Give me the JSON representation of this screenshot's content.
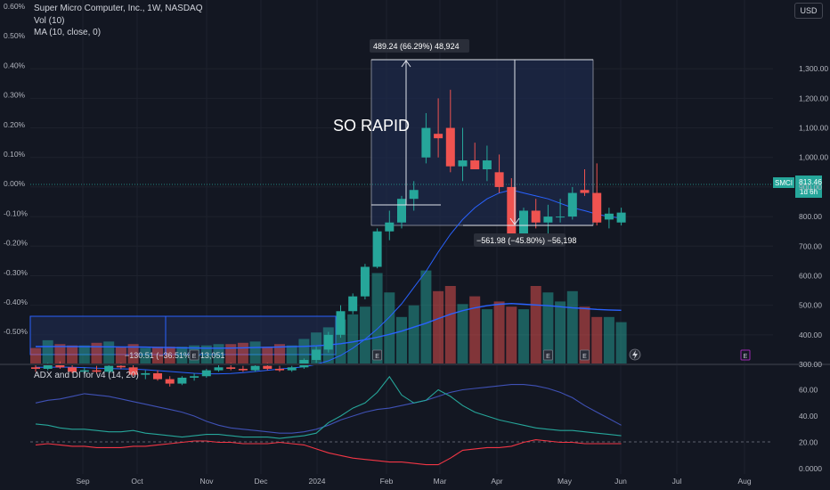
{
  "header": {
    "symbol_line": "Super Micro Computer, Inc., 1W, NASDAQ",
    "vol_line": "Vol (10)",
    "ma_line": "MA (10, close, 0)",
    "currency_button": "USD"
  },
  "annotations": {
    "headline": "SO RAPID",
    "measure_up": "489.24 (66.29%) 48,924",
    "measure_down": "−561.98 (−45.80%) −56,198",
    "measure_left": "−130.51 (−36.51%) −13,051",
    "last_price_symbol": "SMCI",
    "last_price": "813.46",
    "countdown": "1d 6h"
  },
  "left_axis_labels": [
    "0.60%",
    "0.50%",
    "0.40%",
    "0.30%",
    "0.20%",
    "0.10%",
    "0.00%",
    "-0.10%",
    "-0.20%",
    "-0.30%",
    "-0.40%",
    "-0.50%"
  ],
  "right_axis_labels": [
    "1,300.00",
    "1,200.00",
    "1,100.00",
    "1,000.00",
    "900.00",
    "800.00",
    "700.00",
    "600.00",
    "500.00",
    "400.00",
    "300.00"
  ],
  "x_axis_labels": [
    "Sep",
    "Oct",
    "Nov",
    "Dec",
    "2024",
    "Feb",
    "Mar",
    "Apr",
    "May",
    "Jun",
    "Jul",
    "Aug"
  ],
  "adx_panel": {
    "title": "ADX and DI for v4 (14, 20)",
    "axis_labels": [
      "60.00",
      "40.00",
      "20.00",
      "0.0000"
    ]
  },
  "colors": {
    "background": "#131722",
    "up": "#26a69a",
    "down": "#ef5350",
    "ma_line": "#2962ff",
    "measure_box": "#1e2a4a",
    "adx_blue": "#3f51b5",
    "adx_green": "#26a69a",
    "adx_red": "#f23645"
  },
  "chart_data": {
    "type": "candlestick",
    "title": "Super Micro Computer, Inc., 1W, NASDAQ",
    "candles": [
      {
        "o": 290,
        "h": 300,
        "l": 275,
        "c": 285
      },
      {
        "o": 285,
        "h": 305,
        "l": 280,
        "c": 300
      },
      {
        "o": 300,
        "h": 310,
        "l": 285,
        "c": 290
      },
      {
        "o": 290,
        "h": 298,
        "l": 270,
        "c": 275
      },
      {
        "o": 275,
        "h": 290,
        "l": 265,
        "c": 280
      },
      {
        "o": 280,
        "h": 295,
        "l": 270,
        "c": 275
      },
      {
        "o": 275,
        "h": 300,
        "l": 270,
        "c": 295
      },
      {
        "o": 295,
        "h": 305,
        "l": 285,
        "c": 290
      },
      {
        "o": 290,
        "h": 300,
        "l": 260,
        "c": 265
      },
      {
        "o": 265,
        "h": 280,
        "l": 250,
        "c": 270
      },
      {
        "o": 270,
        "h": 280,
        "l": 245,
        "c": 250
      },
      {
        "o": 250,
        "h": 260,
        "l": 225,
        "c": 235
      },
      {
        "o": 235,
        "h": 260,
        "l": 230,
        "c": 255
      },
      {
        "o": 255,
        "h": 270,
        "l": 245,
        "c": 260
      },
      {
        "o": 260,
        "h": 285,
        "l": 255,
        "c": 280
      },
      {
        "o": 280,
        "h": 300,
        "l": 275,
        "c": 290
      },
      {
        "o": 290,
        "h": 305,
        "l": 280,
        "c": 285
      },
      {
        "o": 285,
        "h": 295,
        "l": 275,
        "c": 280
      },
      {
        "o": 280,
        "h": 300,
        "l": 275,
        "c": 295
      },
      {
        "o": 295,
        "h": 305,
        "l": 280,
        "c": 285
      },
      {
        "o": 285,
        "h": 295,
        "l": 275,
        "c": 280
      },
      {
        "o": 280,
        "h": 295,
        "l": 275,
        "c": 290
      },
      {
        "o": 290,
        "h": 320,
        "l": 285,
        "c": 315
      },
      {
        "o": 315,
        "h": 360,
        "l": 305,
        "c": 350
      },
      {
        "o": 350,
        "h": 410,
        "l": 340,
        "c": 400
      },
      {
        "o": 400,
        "h": 500,
        "l": 390,
        "c": 480
      },
      {
        "o": 480,
        "h": 540,
        "l": 470,
        "c": 530
      },
      {
        "o": 530,
        "h": 640,
        "l": 520,
        "c": 630
      },
      {
        "o": 630,
        "h": 760,
        "l": 625,
        "c": 750
      },
      {
        "o": 750,
        "h": 820,
        "l": 720,
        "c": 780
      },
      {
        "o": 780,
        "h": 870,
        "l": 760,
        "c": 860
      },
      {
        "o": 860,
        "h": 920,
        "l": 820,
        "c": 890
      },
      {
        "o": 1000,
        "h": 1150,
        "l": 980,
        "c": 1100
      },
      {
        "o": 1080,
        "h": 1200,
        "l": 1000,
        "c": 1065
      },
      {
        "o": 1100,
        "h": 1229,
        "l": 950,
        "c": 970
      },
      {
        "o": 970,
        "h": 1100,
        "l": 920,
        "c": 990
      },
      {
        "o": 990,
        "h": 1050,
        "l": 960,
        "c": 960
      },
      {
        "o": 960,
        "h": 1040,
        "l": 920,
        "c": 990
      },
      {
        "o": 950,
        "h": 1010,
        "l": 880,
        "c": 900
      },
      {
        "o": 900,
        "h": 930,
        "l": 700,
        "c": 720
      },
      {
        "o": 720,
        "h": 830,
        "l": 700,
        "c": 820
      },
      {
        "o": 820,
        "h": 860,
        "l": 760,
        "c": 780
      },
      {
        "o": 780,
        "h": 840,
        "l": 740,
        "c": 800
      },
      {
        "o": 800,
        "h": 860,
        "l": 780,
        "c": 800
      },
      {
        "o": 800,
        "h": 900,
        "l": 790,
        "c": 880
      },
      {
        "o": 890,
        "h": 960,
        "l": 870,
        "c": 880
      },
      {
        "o": 880,
        "h": 980,
        "l": 770,
        "c": 780
      },
      {
        "o": 790,
        "h": 830,
        "l": 760,
        "c": 810
      },
      {
        "o": 780,
        "h": 830,
        "l": 770,
        "c": 813.46
      }
    ],
    "volume_max": 100,
    "volume": [
      12,
      18,
      15,
      14,
      14,
      16,
      17,
      13,
      15,
      12,
      13,
      13,
      13,
      14,
      14,
      15,
      15,
      16,
      17,
      13,
      15,
      14,
      19,
      24,
      28,
      34,
      38,
      44,
      70,
      55,
      36,
      45,
      72,
      56,
      60,
      46,
      52,
      42,
      48,
      44,
      42,
      60,
      55,
      48,
      56,
      44,
      36,
      36,
      32
    ],
    "ma": [
      290,
      290,
      291,
      290,
      289,
      287,
      286,
      285,
      284,
      282,
      279,
      276,
      273,
      270,
      268,
      268,
      269,
      272,
      276,
      280,
      284,
      288,
      292,
      300,
      312,
      330,
      355,
      385,
      420,
      460,
      505,
      560,
      615,
      680,
      740,
      790,
      830,
      860,
      880,
      890,
      880,
      870,
      860,
      845,
      830,
      820,
      808,
      800,
      795
    ],
    "adx_di": {
      "adx": [
        50,
        52,
        53,
        55,
        57,
        56,
        55,
        53,
        51,
        49,
        47,
        45,
        43,
        40,
        36,
        33,
        31,
        30,
        29,
        28,
        27,
        27,
        28,
        30,
        33,
        37,
        40,
        43,
        45,
        46,
        48,
        50,
        52,
        55,
        58,
        60,
        61,
        62,
        63,
        64,
        64,
        63,
        61,
        58,
        54,
        48,
        43,
        38,
        33
      ],
      "di_plus": [
        34,
        33,
        31,
        30,
        30,
        29,
        28,
        28,
        29,
        27,
        26,
        25,
        24,
        25,
        26,
        26,
        25,
        24,
        24,
        24,
        23,
        24,
        25,
        27,
        35,
        40,
        46,
        50,
        58,
        70,
        56,
        50,
        52,
        60,
        55,
        48,
        43,
        40,
        37,
        35,
        33,
        31,
        30,
        29,
        29,
        28,
        27,
        26,
        25
      ],
      "di_minus": [
        18,
        19,
        18,
        17,
        17,
        16,
        16,
        16,
        17,
        17,
        18,
        19,
        20,
        21,
        21,
        20,
        20,
        19,
        19,
        19,
        20,
        19,
        18,
        15,
        12,
        10,
        8,
        7,
        6,
        5,
        5,
        4,
        3,
        3,
        8,
        14,
        15,
        16,
        16,
        17,
        20,
        22,
        21,
        20,
        20,
        19,
        19,
        19,
        19
      ]
    }
  }
}
